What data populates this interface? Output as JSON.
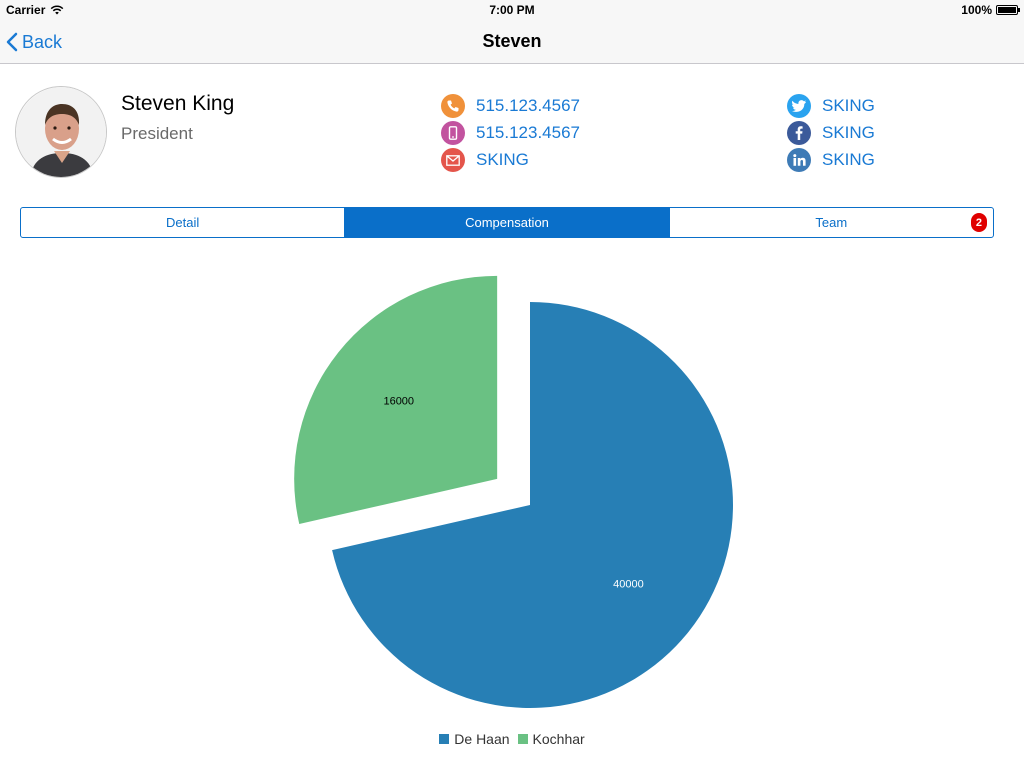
{
  "status_bar": {
    "carrier": "Carrier",
    "time": "7:00 PM",
    "battery": "100%"
  },
  "nav": {
    "back_label": "Back",
    "title": "Steven"
  },
  "profile": {
    "name": "Steven King",
    "title": "President"
  },
  "contacts": {
    "phone": "515.123.4567",
    "mobile": "515.123.4567",
    "email": "SKING",
    "twitter": "SKING",
    "facebook": "SKING",
    "linkedin": "SKING"
  },
  "tabs": [
    {
      "label": "Detail",
      "active": false
    },
    {
      "label": "Compensation",
      "active": true
    },
    {
      "label": "Team",
      "active": false,
      "badge": "2"
    }
  ],
  "colors": {
    "accent": "#0a6fc9",
    "link": "#1a7ad4",
    "phone_icon": "#f0913a",
    "mobile_icon": "#c2539f",
    "email_icon": "#e4554b",
    "twitter_icon": "#2aa3ef",
    "facebook_icon": "#3b5a9a",
    "linkedin_icon": "#3e7bb6"
  },
  "chart_data": {
    "type": "pie",
    "series": [
      {
        "name": "De Haan",
        "value": 40000,
        "color": "#277fb5"
      },
      {
        "name": "Kochhar",
        "value": 16000,
        "color": "#6ac183"
      }
    ],
    "legend_position": "bottom",
    "title": ""
  }
}
